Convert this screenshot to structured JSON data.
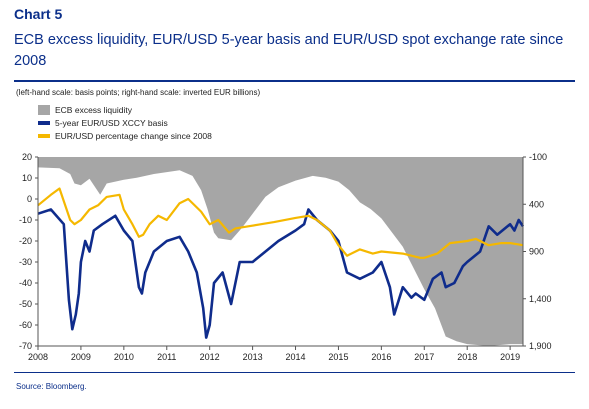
{
  "header": {
    "chart_number": "Chart 5",
    "title": "ECB excess liquidity, EUR/USD 5-year basis and EUR/USD spot exchange rate since 2008",
    "subtitle": "(left-hand scale: basis points; right-hand scale: inverted EUR billions)"
  },
  "footer": {
    "source": "Source: Bloomberg."
  },
  "colors": {
    "excess_liquidity": "#a6a6a6",
    "xccy_basis": "#0f2c8c",
    "eurusd": "#f5b800",
    "axis": "#555555"
  },
  "chart_data": {
    "type": "line",
    "legend_position": "top-left",
    "grid": false,
    "x_ticks": [
      "2008",
      "2009",
      "2010",
      "2011",
      "2012",
      "2013",
      "2014",
      "2015",
      "2016",
      "2017",
      "2018",
      "2019"
    ],
    "xlim": [
      2008.0,
      2019.3
    ],
    "left_axis": {
      "ticks": [
        "20",
        "10",
        "0",
        "-10",
        "-20",
        "-30",
        "-40",
        "-50",
        "-60",
        "-70"
      ],
      "ylim": [
        -70,
        20
      ]
    },
    "right_axis": {
      "ticks": [
        "-100",
        "400",
        "900",
        "1,400",
        "1,900"
      ],
      "ylim": [
        -100,
        1900
      ],
      "inverted": true
    },
    "series": [
      {
        "name": "ECB excess liquidity",
        "kind": "area",
        "axis": "right",
        "x": [
          2008.0,
          2008.5,
          2008.75,
          2008.85,
          2009.0,
          2009.2,
          2009.45,
          2009.6,
          2009.8,
          2010.0,
          2010.3,
          2010.5,
          2010.7,
          2011.0,
          2011.3,
          2011.6,
          2011.8,
          2011.95,
          2012.1,
          2012.2,
          2012.5,
          2012.75,
          2013.0,
          2013.3,
          2013.6,
          2014.0,
          2014.4,
          2014.7,
          2015.0,
          2015.25,
          2015.5,
          2015.75,
          2016.0,
          2016.5,
          2017.0,
          2017.25,
          2017.5,
          2017.75,
          2018.0,
          2018.5,
          2019.0,
          2019.3
        ],
        "values": [
          10,
          20,
          80,
          180,
          200,
          130,
          300,
          180,
          160,
          140,
          120,
          100,
          80,
          60,
          40,
          100,
          250,
          450,
          700,
          760,
          780,
          650,
          500,
          320,
          220,
          150,
          100,
          120,
          160,
          250,
          380,
          450,
          550,
          850,
          1300,
          1500,
          1800,
          1850,
          1880,
          1900,
          1880,
          1880
        ]
      },
      {
        "name": "5-year EUR/USD XCCY basis",
        "kind": "line",
        "axis": "left",
        "x": [
          2008.0,
          2008.3,
          2008.6,
          2008.72,
          2008.8,
          2008.88,
          2008.95,
          2009.0,
          2009.1,
          2009.2,
          2009.3,
          2009.5,
          2009.8,
          2010.0,
          2010.2,
          2010.35,
          2010.42,
          2010.5,
          2010.7,
          2011.0,
          2011.3,
          2011.5,
          2011.7,
          2011.85,
          2011.92,
          2012.0,
          2012.1,
          2012.3,
          2012.5,
          2012.7,
          2013.0,
          2013.3,
          2013.6,
          2014.0,
          2014.2,
          2014.3,
          2014.5,
          2014.8,
          2015.0,
          2015.2,
          2015.5,
          2015.8,
          2016.0,
          2016.2,
          2016.3,
          2016.5,
          2016.7,
          2016.8,
          2017.0,
          2017.2,
          2017.4,
          2017.5,
          2017.7,
          2017.9,
          2018.0,
          2018.3,
          2018.5,
          2018.7,
          2019.0,
          2019.1,
          2019.2,
          2019.3
        ],
        "values": [
          -7,
          -5,
          -12,
          -48,
          -62,
          -55,
          -45,
          -30,
          -20,
          -25,
          -15,
          -12,
          -8,
          -15,
          -20,
          -42,
          -45,
          -35,
          -25,
          -20,
          -18,
          -25,
          -35,
          -52,
          -66,
          -60,
          -40,
          -35,
          -50,
          -30,
          -30,
          -25,
          -20,
          -15,
          -12,
          -5,
          -10,
          -15,
          -20,
          -35,
          -38,
          -35,
          -30,
          -42,
          -55,
          -42,
          -47,
          -45,
          -48,
          -38,
          -35,
          -42,
          -40,
          -32,
          -30,
          -25,
          -13,
          -17,
          -12,
          -15,
          -10,
          -13
        ]
      },
      {
        "name": "EUR/USD percentage change since 2008",
        "kind": "line",
        "axis": "left",
        "x": [
          2008.0,
          2008.3,
          2008.5,
          2008.75,
          2008.85,
          2009.0,
          2009.2,
          2009.4,
          2009.6,
          2009.9,
          2010.0,
          2010.2,
          2010.35,
          2010.45,
          2010.6,
          2010.8,
          2011.0,
          2011.3,
          2011.5,
          2011.8,
          2012.0,
          2012.2,
          2012.45,
          2012.6,
          2012.9,
          2013.2,
          2013.5,
          2014.0,
          2014.3,
          2014.5,
          2014.8,
          2015.0,
          2015.2,
          2015.5,
          2015.8,
          2016.0,
          2016.5,
          2016.9,
          2017.0,
          2017.3,
          2017.6,
          2018.0,
          2018.2,
          2018.5,
          2018.8,
          2019.0,
          2019.3
        ],
        "values": [
          -3,
          2,
          5,
          -10,
          -12,
          -10,
          -5,
          -3,
          1,
          2,
          -5,
          -12,
          -18,
          -17,
          -12,
          -8,
          -10,
          -2,
          0,
          -6,
          -12,
          -10,
          -16,
          -14,
          -13,
          -12,
          -11,
          -9,
          -8,
          -10,
          -15,
          -22,
          -27,
          -24,
          -26,
          -25,
          -26,
          -28,
          -28,
          -26,
          -21,
          -20,
          -19,
          -22,
          -21,
          -21,
          -22
        ]
      }
    ]
  }
}
